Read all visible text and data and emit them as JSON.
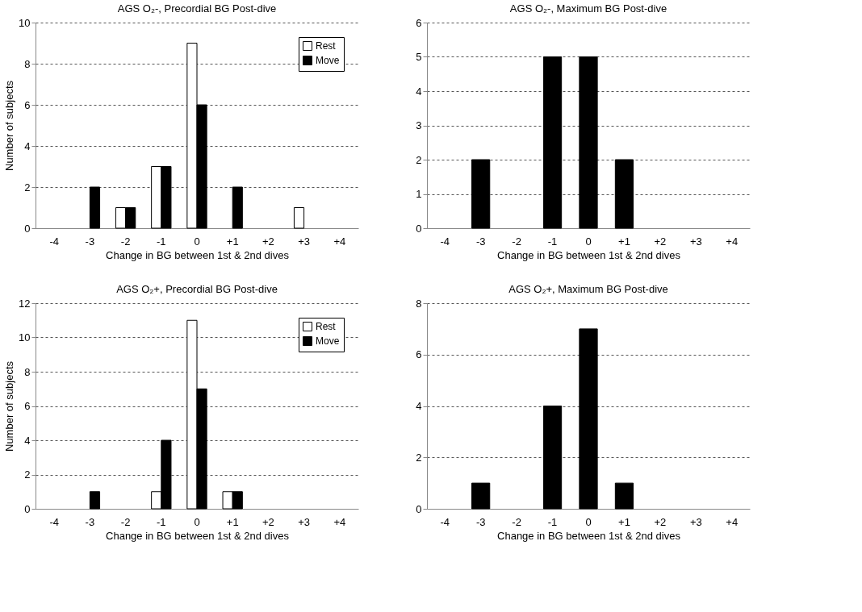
{
  "chart_data": [
    {
      "type": "bar",
      "title": "AGS O₂-, Precordial BG Post-dive",
      "xlabel": "Change in BG between 1st & 2nd dives",
      "ylabel": "Number of subjects",
      "categories": [
        "-4",
        "-3",
        "-2",
        "-1",
        "0",
        "+1",
        "+2",
        "+3",
        "+4"
      ],
      "series": [
        {
          "name": "Rest",
          "color": "#ffffff",
          "values": [
            0,
            0,
            1,
            3,
            9,
            0,
            0,
            1,
            0
          ]
        },
        {
          "name": "Move",
          "color": "#000000",
          "values": [
            0,
            2,
            1,
            3,
            6,
            2,
            0,
            0,
            0
          ]
        }
      ],
      "ylim": [
        0,
        10
      ],
      "yticks": [
        0,
        2,
        4,
        6,
        8,
        10
      ],
      "grid": "y",
      "legend": "top right"
    },
    {
      "type": "bar",
      "title": "AGS O₂-, Maximum BG Post-dive",
      "xlabel": "Change in BG between 1st & 2nd dives",
      "categories": [
        "-4",
        "-3",
        "-2",
        "-1",
        "0",
        "+1",
        "+2",
        "+3",
        "+4"
      ],
      "series": [
        {
          "color": "#000000",
          "values": [
            0,
            2,
            0,
            5,
            5,
            2,
            0,
            0,
            0
          ]
        }
      ],
      "ylim": [
        0,
        6
      ],
      "yticks": [
        0,
        1,
        2,
        3,
        4,
        5,
        6
      ],
      "grid": "y"
    },
    {
      "type": "bar",
      "title": "AGS O₂+, Precordial BG Post-dive",
      "xlabel": "Change in BG between 1st & 2nd dives",
      "ylabel": "Number of subjects",
      "categories": [
        "-4",
        "-3",
        "-2",
        "-1",
        "0",
        "+1",
        "+2",
        "+3",
        "+4"
      ],
      "series": [
        {
          "name": "Rest",
          "color": "#ffffff",
          "values": [
            0,
            0,
            0,
            1,
            11,
            1,
            0,
            0,
            0
          ]
        },
        {
          "name": "Move",
          "color": "#000000",
          "values": [
            0,
            1,
            0,
            4,
            7,
            1,
            0,
            0,
            0
          ]
        }
      ],
      "ylim": [
        0,
        12
      ],
      "yticks": [
        0,
        2,
        4,
        6,
        8,
        10,
        12
      ],
      "grid": "y",
      "legend": "top right"
    },
    {
      "type": "bar",
      "title": "AGS O₂+, Maximum BG Post-dive",
      "xlabel": "Change in BG between 1st & 2nd dives",
      "categories": [
        "-4",
        "-3",
        "-2",
        "-1",
        "0",
        "+1",
        "+2",
        "+3",
        "+4"
      ],
      "series": [
        {
          "color": "#000000",
          "values": [
            0,
            1,
            0,
            4,
            7,
            1,
            0,
            0,
            0
          ]
        }
      ],
      "ylim": [
        0,
        8
      ],
      "yticks": [
        0,
        2,
        4,
        6,
        8
      ],
      "grid": "y"
    }
  ]
}
